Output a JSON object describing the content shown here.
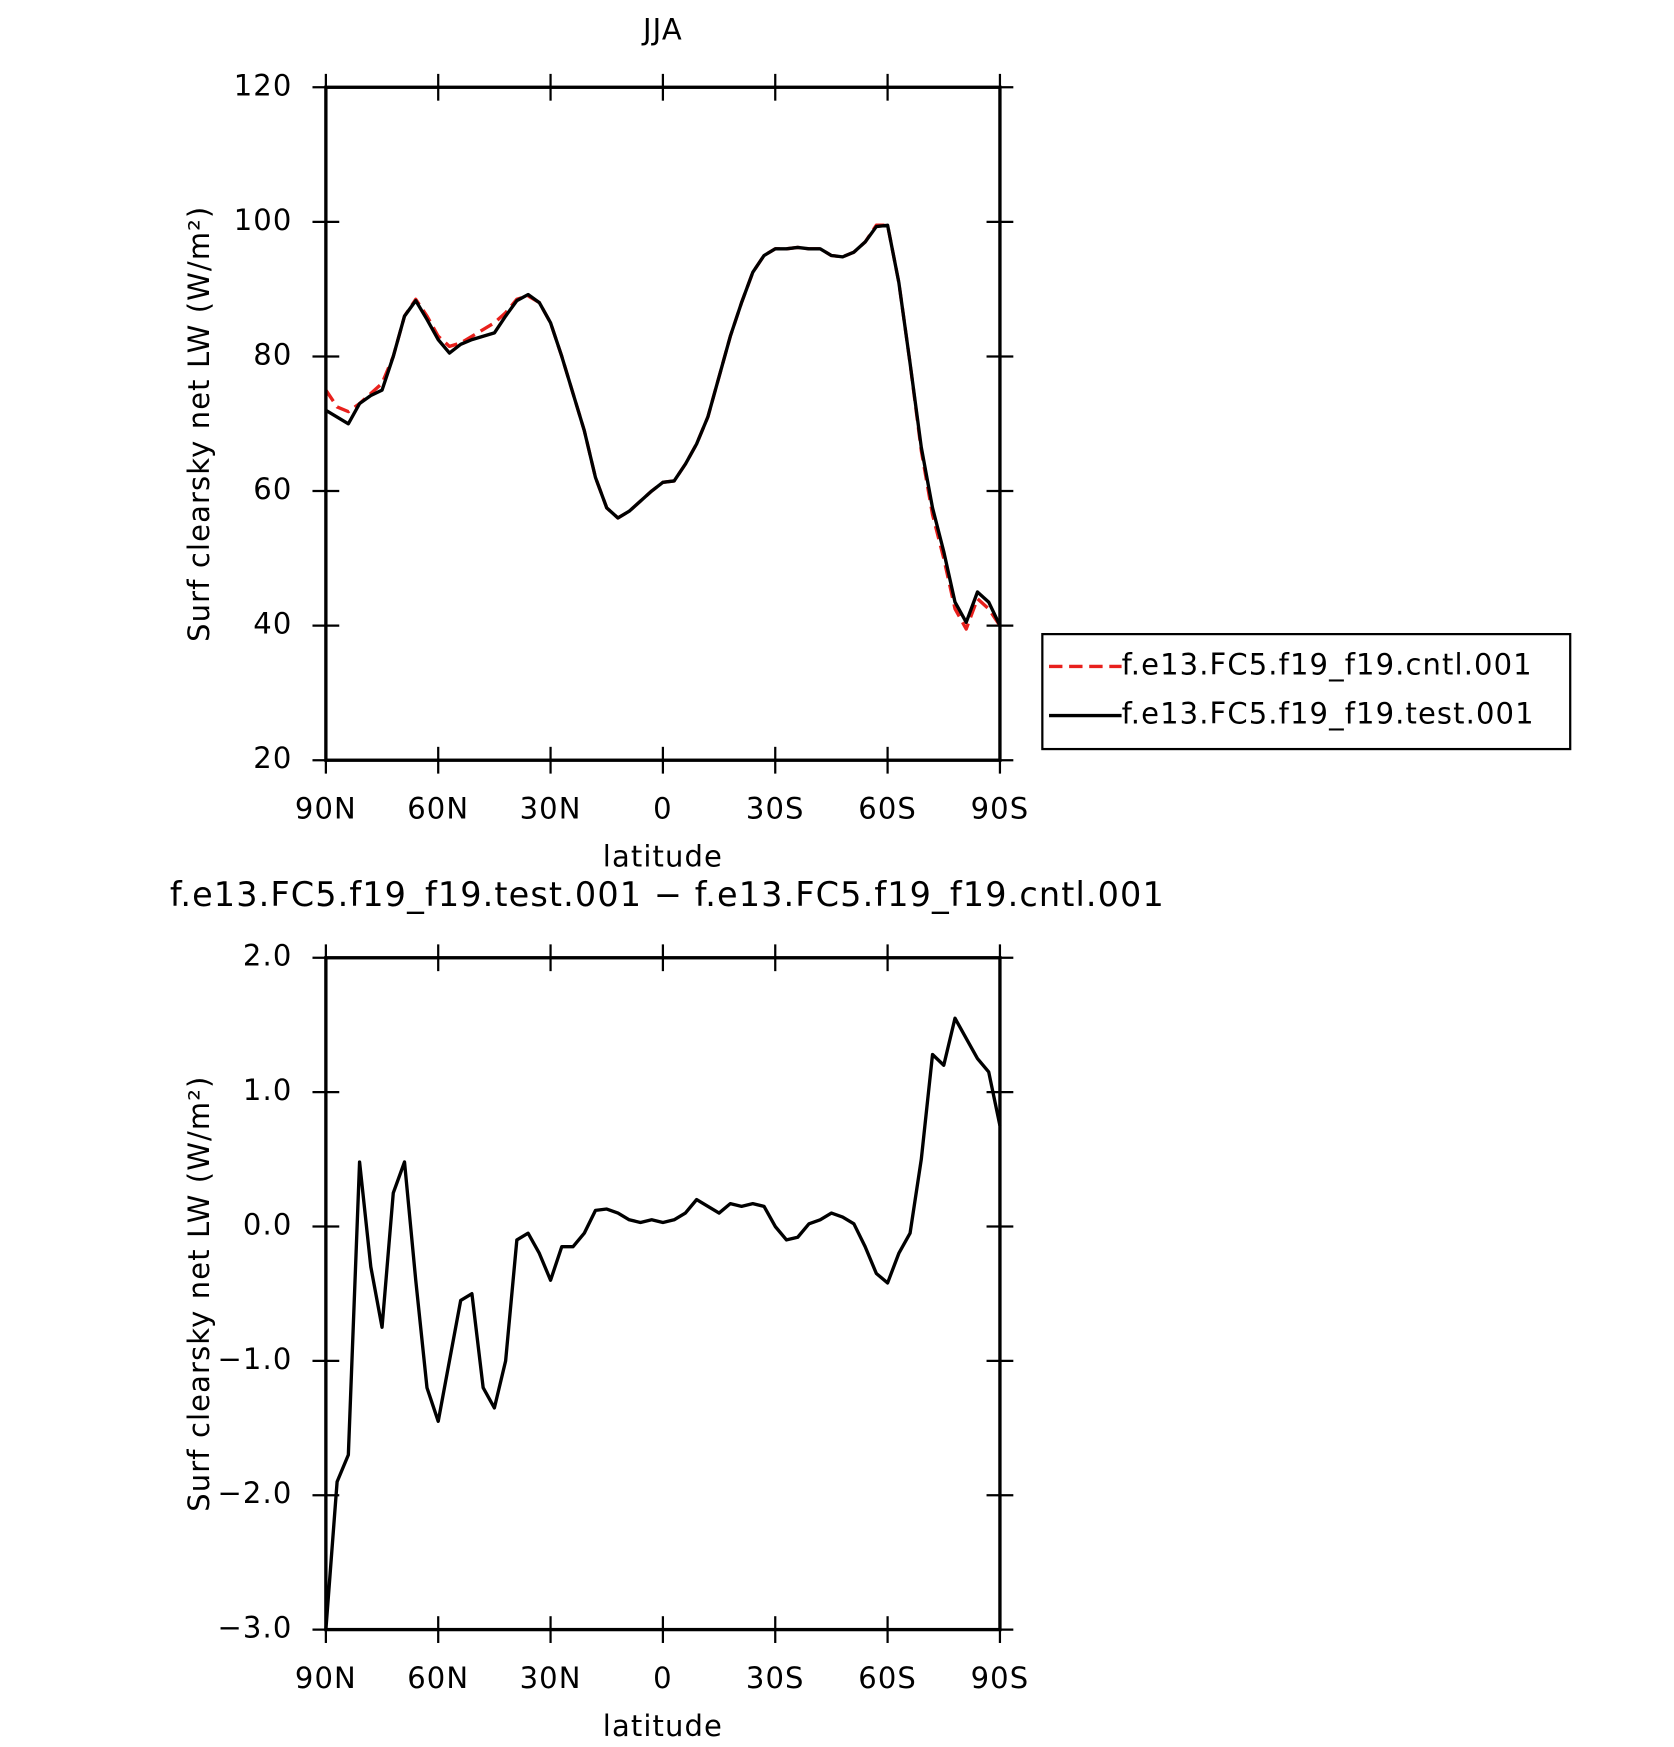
{
  "chart_data": [
    {
      "type": "line",
      "title": "JJA",
      "xlabel": "latitude",
      "ylabel": "Surf clearsky net LW (W/m²)",
      "x": [
        90,
        87,
        84,
        81,
        78,
        75,
        72,
        69,
        66,
        63,
        60,
        57,
        54,
        51,
        48,
        45,
        42,
        39,
        36,
        33,
        30,
        27,
        24,
        21,
        18,
        15,
        12,
        9,
        6,
        3,
        0,
        -3,
        -6,
        -9,
        -12,
        -15,
        -18,
        -21,
        -24,
        -27,
        -30,
        -33,
        -36,
        -39,
        -42,
        -45,
        -48,
        -51,
        -54,
        -57,
        -60,
        -63,
        -66,
        -69,
        -72,
        -75,
        -78,
        -81,
        -84,
        -87,
        -90
      ],
      "series": [
        {
          "name": "f.e13.FC5.f19_f19.cntl.001",
          "color": "#e8201c",
          "linestyle": "dashed",
          "values": [
            75,
            72.5,
            71.8,
            73,
            74.5,
            76,
            80,
            86,
            88.5,
            86,
            83,
            81.5,
            82,
            83,
            84,
            85,
            86.5,
            88.5,
            89,
            88,
            85,
            80,
            74.5,
            69,
            62,
            57.5,
            56,
            57,
            58.5,
            60,
            61.3,
            61.5,
            64,
            67,
            71,
            77,
            83,
            88,
            92.5,
            95,
            96,
            96,
            96.2,
            96,
            96,
            95,
            94.8,
            95.5,
            97,
            99.5,
            99.5,
            91,
            79,
            66,
            56.5,
            50,
            42.5,
            39.5,
            44,
            42.5,
            40
          ]
        },
        {
          "name": "f.e13.FC5.f19_f19.test.001",
          "color": "#000000",
          "linestyle": "solid",
          "values": [
            72,
            71,
            70,
            73,
            74.2,
            75,
            80,
            86,
            88.3,
            85.5,
            82.5,
            80.5,
            81.8,
            82.5,
            83,
            83.5,
            86,
            88.3,
            89.2,
            88,
            85,
            80,
            74.5,
            69,
            62,
            57.5,
            56,
            57,
            58.5,
            60,
            61.3,
            61.5,
            64,
            67,
            71,
            77,
            83,
            88,
            92.5,
            95,
            96,
            96,
            96.2,
            96,
            96,
            95,
            94.8,
            95.5,
            97,
            99.3,
            99.5,
            91,
            79,
            66.5,
            57.5,
            51,
            43.5,
            40.5,
            45,
            43.5,
            40
          ]
        }
      ],
      "xlim": [
        90,
        -90
      ],
      "xticks": [
        {
          "value": 90,
          "label": "90N"
        },
        {
          "value": 60,
          "label": "60N"
        },
        {
          "value": 30,
          "label": "30N"
        },
        0,
        {
          "value": -30,
          "label": "30S"
        },
        {
          "value": -60,
          "label": "60S"
        },
        {
          "value": -90,
          "label": "90S"
        }
      ],
      "ylim": [
        20,
        120
      ],
      "yticks": [
        20,
        40,
        60,
        80,
        100,
        120
      ],
      "legend": "right"
    },
    {
      "type": "line",
      "title": "f.e13.FC5.f19_f19.test.001 − f.e13.FC5.f19_f19.cntl.001",
      "xlabel": "latitude",
      "ylabel": "Surf clearsky net LW (W/m²)",
      "x": [
        90,
        87,
        84,
        81,
        78,
        75,
        72,
        69,
        66,
        63,
        60,
        57,
        54,
        51,
        48,
        45,
        42,
        39,
        36,
        33,
        30,
        27,
        24,
        21,
        18,
        15,
        12,
        9,
        6,
        3,
        0,
        -3,
        -6,
        -9,
        -12,
        -15,
        -18,
        -21,
        -24,
        -27,
        -30,
        -33,
        -36,
        -39,
        -42,
        -45,
        -48,
        -51,
        -54,
        -57,
        -60,
        -63,
        -66,
        -69,
        -72,
        -75,
        -78,
        -81,
        -84,
        -87,
        -90
      ],
      "series": [
        {
          "color": "#000000",
          "linestyle": "solid",
          "values": [
            -3.0,
            -1.9,
            -1.7,
            0.48,
            -0.3,
            -0.75,
            0.25,
            0.48,
            -0.4,
            -1.2,
            -1.45,
            -1.0,
            -0.55,
            -0.5,
            -1.2,
            -1.35,
            -1.0,
            -0.1,
            -0.05,
            -0.2,
            -0.4,
            -0.15,
            -0.15,
            -0.05,
            0.12,
            0.13,
            0.1,
            0.05,
            0.03,
            0.05,
            0.03,
            0.05,
            0.1,
            0.2,
            0.15,
            0.1,
            0.17,
            0.15,
            0.17,
            0.15,
            0.0,
            -0.1,
            -0.08,
            0.02,
            0.05,
            0.1,
            0.07,
            0.02,
            -0.15,
            -0.35,
            -0.42,
            -0.2,
            -0.05,
            0.5,
            1.28,
            1.2,
            1.55,
            1.4,
            1.25,
            1.15,
            0.75
          ]
        }
      ],
      "xlim": [
        90,
        -90
      ],
      "xticks": [
        {
          "value": 90,
          "label": "90N"
        },
        {
          "value": 60,
          "label": "60N"
        },
        {
          "value": 30,
          "label": "30N"
        },
        0,
        {
          "value": -30,
          "label": "30S"
        },
        {
          "value": -60,
          "label": "60S"
        },
        {
          "value": -90,
          "label": "90S"
        }
      ],
      "ylim": [
        -3,
        2
      ],
      "yticks": [
        {
          "value": -3,
          "label": "−3.0"
        },
        {
          "value": -2,
          "label": "−2.0"
        },
        {
          "value": -1,
          "label": "−1.0"
        },
        {
          "value": 0,
          "label": "0.0"
        },
        {
          "value": 1,
          "label": "1.0"
        },
        {
          "value": 2,
          "label": "2.0"
        }
      ]
    }
  ]
}
